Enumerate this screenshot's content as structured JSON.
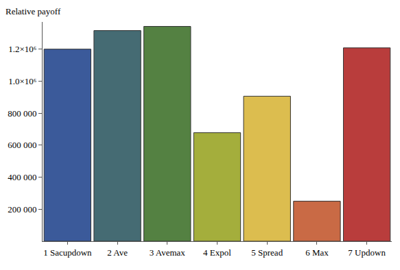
{
  "chart_data": {
    "type": "bar",
    "y_label": "Relative payoff",
    "categories": [
      "1 Sacupdown",
      "2 Ave",
      "3 Avemax",
      "4 Expol",
      "5 Spread",
      "6 Max",
      "7 Updown"
    ],
    "values": [
      1200000,
      1316000,
      1342000,
      678000,
      906000,
      250000,
      1208000
    ],
    "colors": [
      "#3b5a9a",
      "#456b73",
      "#548142",
      "#a4ae3c",
      "#dcbd4f",
      "#c96a45",
      "#b93d3c"
    ],
    "ylim": [
      0,
      1370000
    ],
    "yticks": [
      {
        "value": 200000,
        "label": "200 000"
      },
      {
        "value": 400000,
        "label": "400 000"
      },
      {
        "value": 600000,
        "label": "600 000"
      },
      {
        "value": 800000,
        "label": "800 000"
      },
      {
        "value": 1000000,
        "label": "1.0×10⁶"
      },
      {
        "value": 1200000,
        "label": "1.2×10⁶"
      }
    ],
    "grid": false
  }
}
